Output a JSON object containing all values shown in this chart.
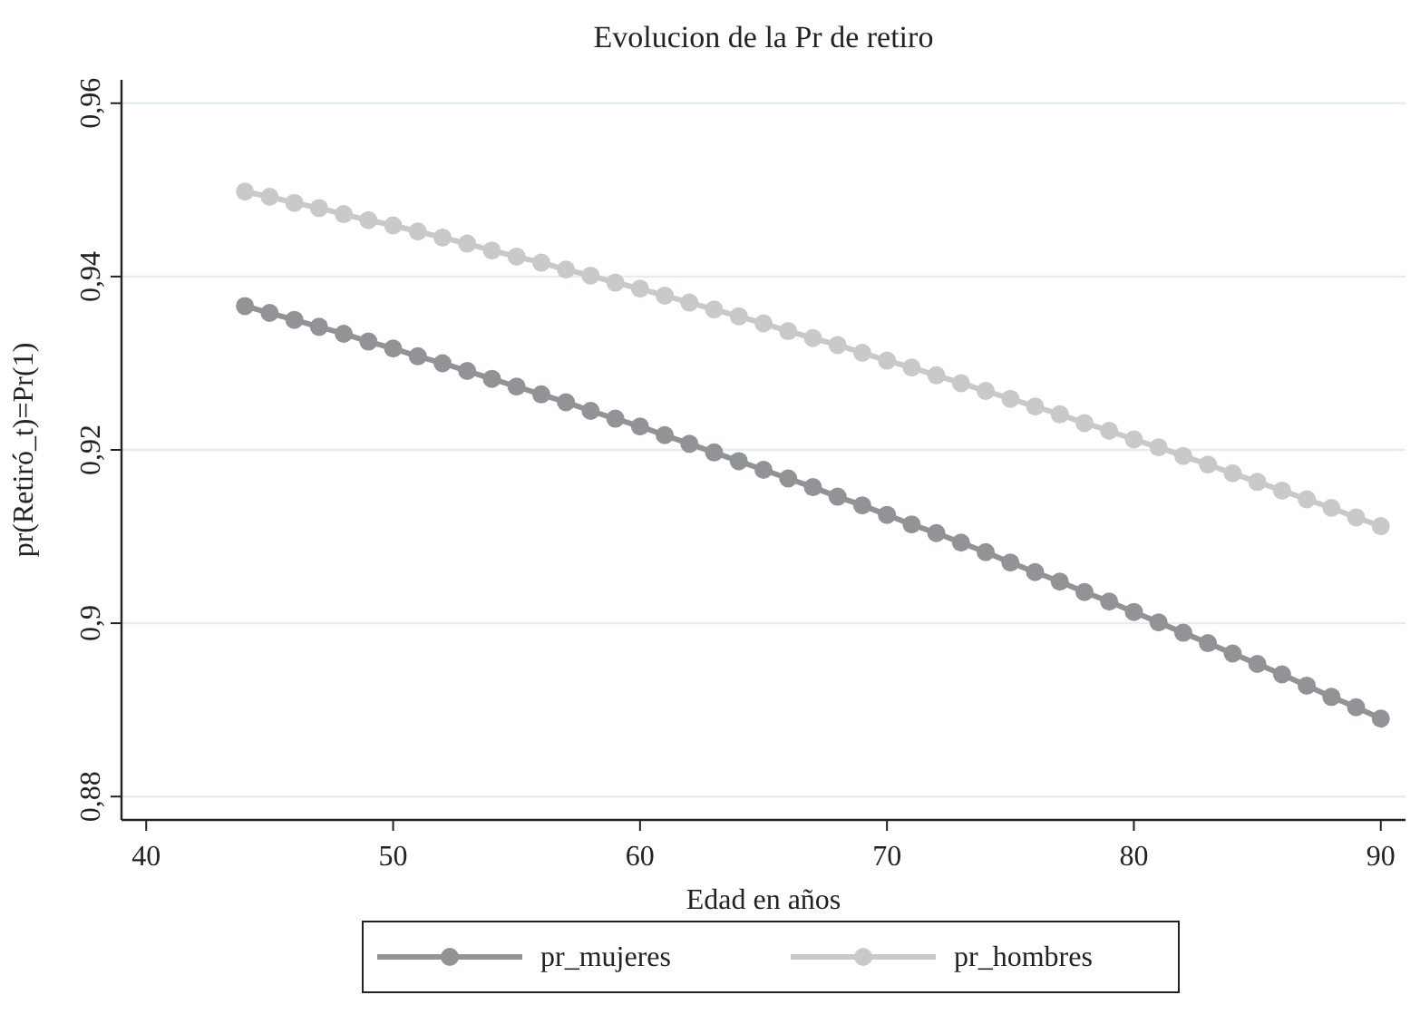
{
  "chart_data": {
    "type": "line",
    "title": "Evolucion de la Pr de retiro",
    "xlabel": "Edad en años",
    "ylabel": "pr(Retiró_t)=Pr(1)",
    "x": [
      44,
      45,
      46,
      47,
      48,
      49,
      50,
      51,
      52,
      53,
      54,
      55,
      56,
      57,
      58,
      59,
      60,
      61,
      62,
      63,
      64,
      65,
      66,
      67,
      68,
      69,
      70,
      71,
      72,
      73,
      74,
      75,
      76,
      77,
      78,
      79,
      80,
      81,
      82,
      83,
      84,
      85,
      86,
      87,
      88,
      89,
      90
    ],
    "series": [
      {
        "name": "pr_mujeres",
        "color": "#929397",
        "values": [
          0.9366,
          0.9358,
          0.935,
          0.9342,
          0.9334,
          0.9325,
          0.9317,
          0.9308,
          0.93,
          0.9291,
          0.9282,
          0.9273,
          0.9264,
          0.9255,
          0.9245,
          0.9236,
          0.9227,
          0.9217,
          0.9207,
          0.9197,
          0.9187,
          0.9177,
          0.9167,
          0.9157,
          0.9146,
          0.9136,
          0.9125,
          0.9114,
          0.9104,
          0.9093,
          0.9082,
          0.907,
          0.9059,
          0.9048,
          0.9036,
          0.9025,
          0.9013,
          0.9001,
          0.8989,
          0.8977,
          0.8965,
          0.8953,
          0.8941,
          0.8928,
          0.8915,
          0.8903,
          0.889
        ]
      },
      {
        "name": "pr_hombres",
        "color": "#c8c9cb",
        "values": [
          0.9498,
          0.9492,
          0.9485,
          0.9479,
          0.9472,
          0.9465,
          0.9459,
          0.9452,
          0.9445,
          0.9438,
          0.943,
          0.9423,
          0.9416,
          0.9408,
          0.9401,
          0.9393,
          0.9386,
          0.9378,
          0.937,
          0.9362,
          0.9354,
          0.9346,
          0.9337,
          0.9329,
          0.9321,
          0.9312,
          0.9303,
          0.9295,
          0.9286,
          0.9277,
          0.9268,
          0.9259,
          0.925,
          0.9241,
          0.9231,
          0.9222,
          0.9212,
          0.9203,
          0.9193,
          0.9183,
          0.9173,
          0.9163,
          0.9153,
          0.9143,
          0.9133,
          0.9122,
          0.9112
        ]
      }
    ],
    "xlim": [
      39,
      91
    ],
    "xticks": [
      40,
      50,
      60,
      70,
      80,
      90
    ],
    "ylim": [
      0.8773,
      0.9627
    ],
    "yticks": [
      {
        "value": 0.88,
        "label": "0,88"
      },
      {
        "value": 0.9,
        "label": "0,9"
      },
      {
        "value": 0.92,
        "label": "0,92"
      },
      {
        "value": 0.94,
        "label": "0,94"
      },
      {
        "value": 0.96,
        "label": "0,96"
      }
    ],
    "grid": "y",
    "legend": "bottom",
    "marker": "circle",
    "line_style": "solid"
  }
}
